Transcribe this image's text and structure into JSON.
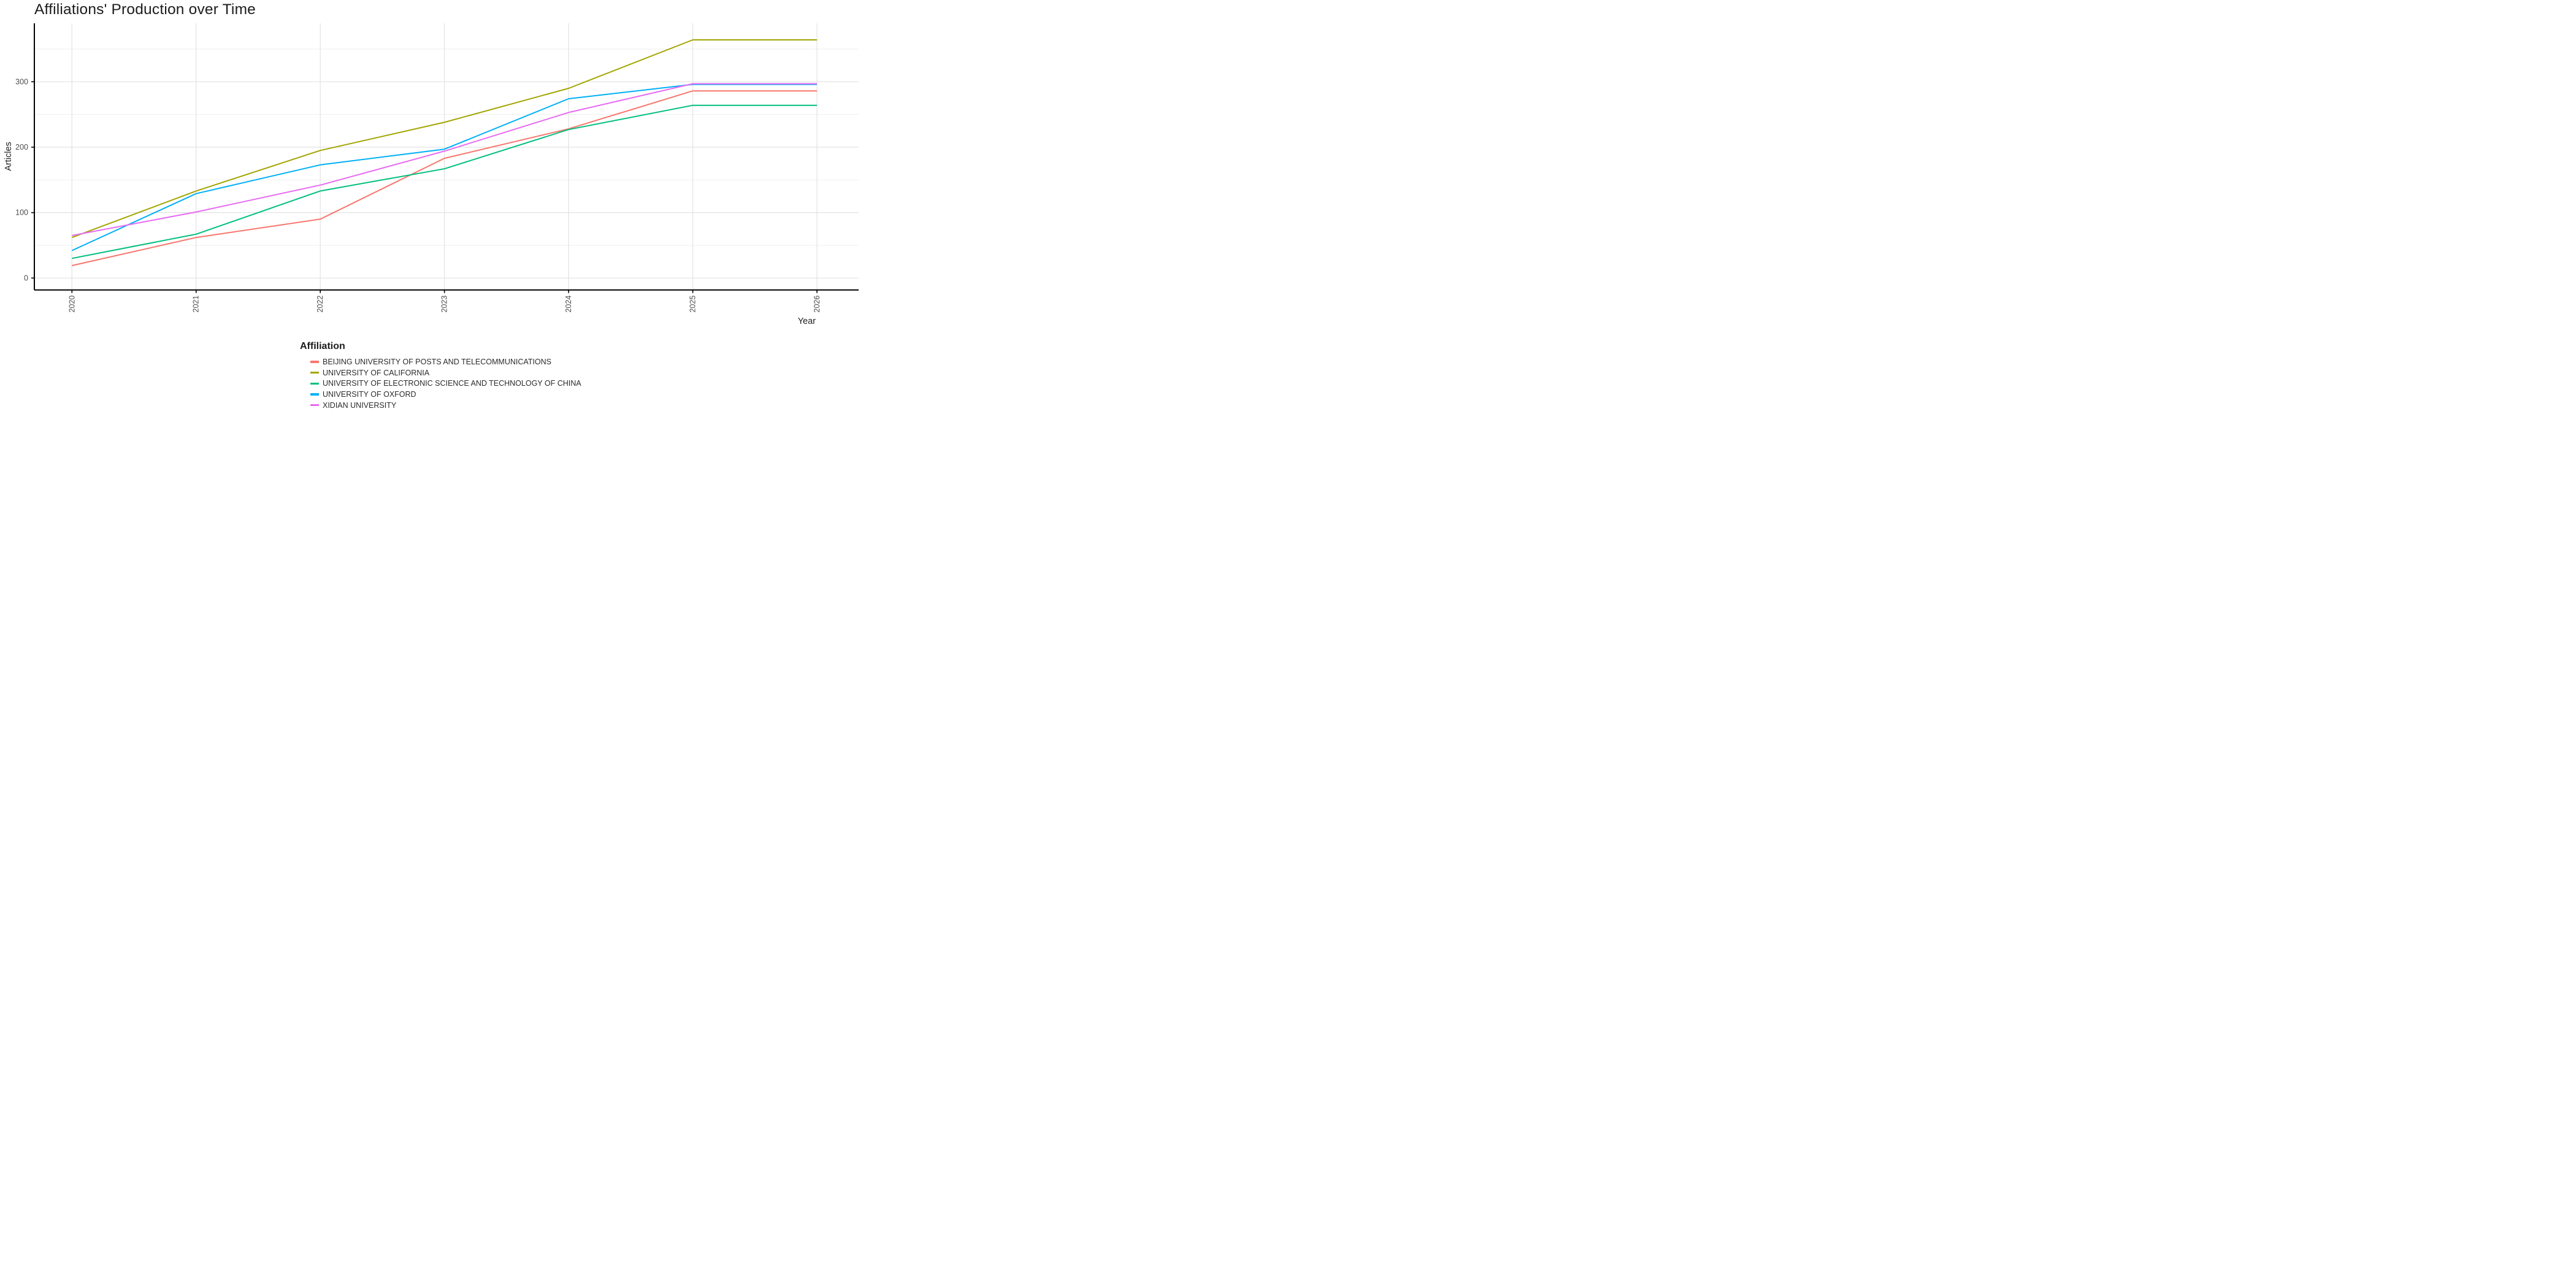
{
  "chart_data": {
    "type": "line",
    "title": "Affiliations' Production over Time",
    "xlabel": "Year",
    "ylabel": "Articles",
    "x": [
      2020,
      2021,
      2022,
      2023,
      2024,
      2025,
      2026
    ],
    "y_axis": {
      "ticks": [
        0,
        100,
        200,
        300
      ],
      "minor_ticks": [
        50,
        150,
        250,
        350
      ]
    },
    "ylim": [
      0,
      380
    ],
    "grid": {
      "major_x": true,
      "minor_x": false,
      "major_y": true,
      "minor_y": true
    },
    "legend": {
      "title": "Affiliation",
      "position": "bottom"
    },
    "series": [
      {
        "name": "BEIJING UNIVERSITY OF POSTS AND TELECOMMUNICATIONS",
        "color": "#F8766D",
        "values": [
          19,
          62,
          90,
          183,
          228,
          286,
          286
        ]
      },
      {
        "name": "UNIVERSITY OF CALIFORNIA",
        "color": "#A3A500",
        "values": [
          62,
          133,
          195,
          238,
          290,
          364,
          364
        ]
      },
      {
        "name": "UNIVERSITY OF ELECTRONIC SCIENCE AND TECHNOLOGY OF CHINA",
        "color": "#00BF7D",
        "values": [
          30,
          67,
          133,
          167,
          227,
          264,
          264
        ]
      },
      {
        "name": "UNIVERSITY OF OXFORD",
        "color": "#00B0F6",
        "values": [
          42,
          129,
          173,
          197,
          274,
          296,
          296
        ]
      },
      {
        "name": "XIDIAN UNIVERSITY",
        "color": "#E76BF3",
        "values": [
          65,
          101,
          142,
          194,
          253,
          297,
          297
        ]
      }
    ],
    "style": {
      "axis_line_color": "#000000",
      "tick_label_color": "#4d4d4d",
      "major_grid_color": "#e2e2e2",
      "minor_grid_color": "#efefef",
      "background": "#ffffff"
    }
  }
}
